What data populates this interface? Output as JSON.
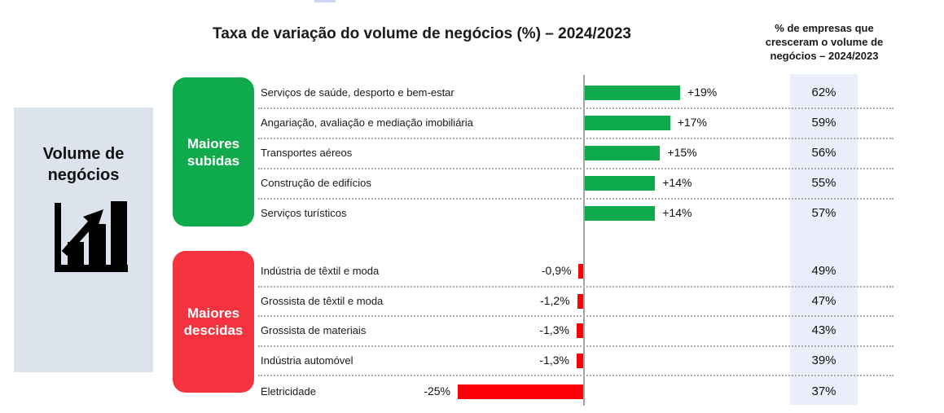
{
  "page": {
    "title": "Taxa de variação do volume de negócios (%) – 2024/2023"
  },
  "sidebar": {
    "label": "Volume de\nnegócios",
    "icon": "bar-chart-rising-arrow-icon",
    "background_color": "#dde3ec"
  },
  "groups": [
    {
      "label": "Maiores\nsubidas",
      "color": "#0faa4b"
    },
    {
      "label": "Maiores\ndescidas",
      "color": "#f5333f"
    }
  ],
  "chart_data": {
    "type": "bar",
    "orientation": "horizontal",
    "title": "Taxa de variação do volume de negócios (%) – 2024/2023",
    "companies_column_title": "% de empresas que\ncresceram o volume de\nnegócios – 2024/2023",
    "unit": "%",
    "positive_color": "#0faa4b",
    "negative_color": "#fb0107",
    "companies_band_color": "#e9eefa",
    "xlim": [
      -25,
      19
    ],
    "rows": [
      {
        "group": "Maiores subidas",
        "label": "Serviços de saúde, desporto e bem-estar",
        "value": 19,
        "value_label": "+19%",
        "companies_pct": "62%"
      },
      {
        "group": "Maiores subidas",
        "label": "Angariação, avaliação e mediação imobiliária",
        "value": 17,
        "value_label": "+17%",
        "companies_pct": "59%"
      },
      {
        "group": "Maiores subidas",
        "label": "Transportes aéreos",
        "value": 15,
        "value_label": "+15%",
        "companies_pct": "56%"
      },
      {
        "group": "Maiores subidas",
        "label": "Construção de edifícios",
        "value": 14,
        "value_label": "+14%",
        "companies_pct": "55%"
      },
      {
        "group": "Maiores subidas",
        "label": "Serviços turísticos",
        "value": 14,
        "value_label": "+14%",
        "companies_pct": "57%"
      },
      {
        "group": "Maiores descidas",
        "label": "Indústria de têxtil e moda",
        "value": -0.9,
        "value_label": "-0,9%",
        "companies_pct": "49%"
      },
      {
        "group": "Maiores descidas",
        "label": "Grossista de têxtil e moda",
        "value": -1.2,
        "value_label": "-1,2%",
        "companies_pct": "47%"
      },
      {
        "group": "Maiores descidas",
        "label": "Grossista de materiais",
        "value": -1.3,
        "value_label": "-1,3%",
        "companies_pct": "43%"
      },
      {
        "group": "Maiores descidas",
        "label": "Indústria automóvel",
        "value": -1.3,
        "value_label": "-1,3%",
        "companies_pct": "39%"
      },
      {
        "group": "Maiores descidas",
        "label": "Eletricidade",
        "value": -25,
        "value_label": "-25%",
        "companies_pct": "37%"
      }
    ]
  }
}
